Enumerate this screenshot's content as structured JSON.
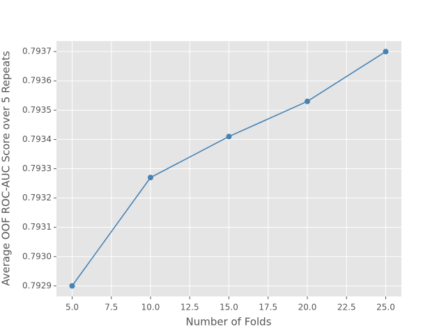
{
  "chart_data": {
    "type": "line",
    "x_label": "Number of Folds",
    "y_label": "Average OOF ROC-AUC Score over 5 Repeats",
    "x": [
      5,
      10,
      15,
      20,
      25
    ],
    "series": [
      {
        "color": "#4682b4",
        "values": [
          0.7929,
          0.79327,
          0.79341,
          0.79353,
          0.7937
        ]
      }
    ],
    "xlim": [
      4,
      26
    ],
    "ylim": [
      0.792864,
      0.793736
    ],
    "xticks": [
      {
        "value": 5,
        "label": "5.0"
      },
      7.5,
      {
        "value": 10,
        "label": "10.0"
      },
      12.5,
      {
        "value": 15,
        "label": "15.0"
      },
      17.5,
      {
        "value": 20,
        "label": "20.0"
      },
      22.5,
      {
        "value": 25,
        "label": "25.0"
      }
    ],
    "yticks": [
      0.7929,
      {
        "value": 0.793,
        "label": "0.7930"
      },
      0.7931,
      0.7932,
      0.7933,
      0.7934,
      0.7935,
      0.7936,
      0.7937
    ],
    "grid": true,
    "background": "#e5e5e5"
  }
}
